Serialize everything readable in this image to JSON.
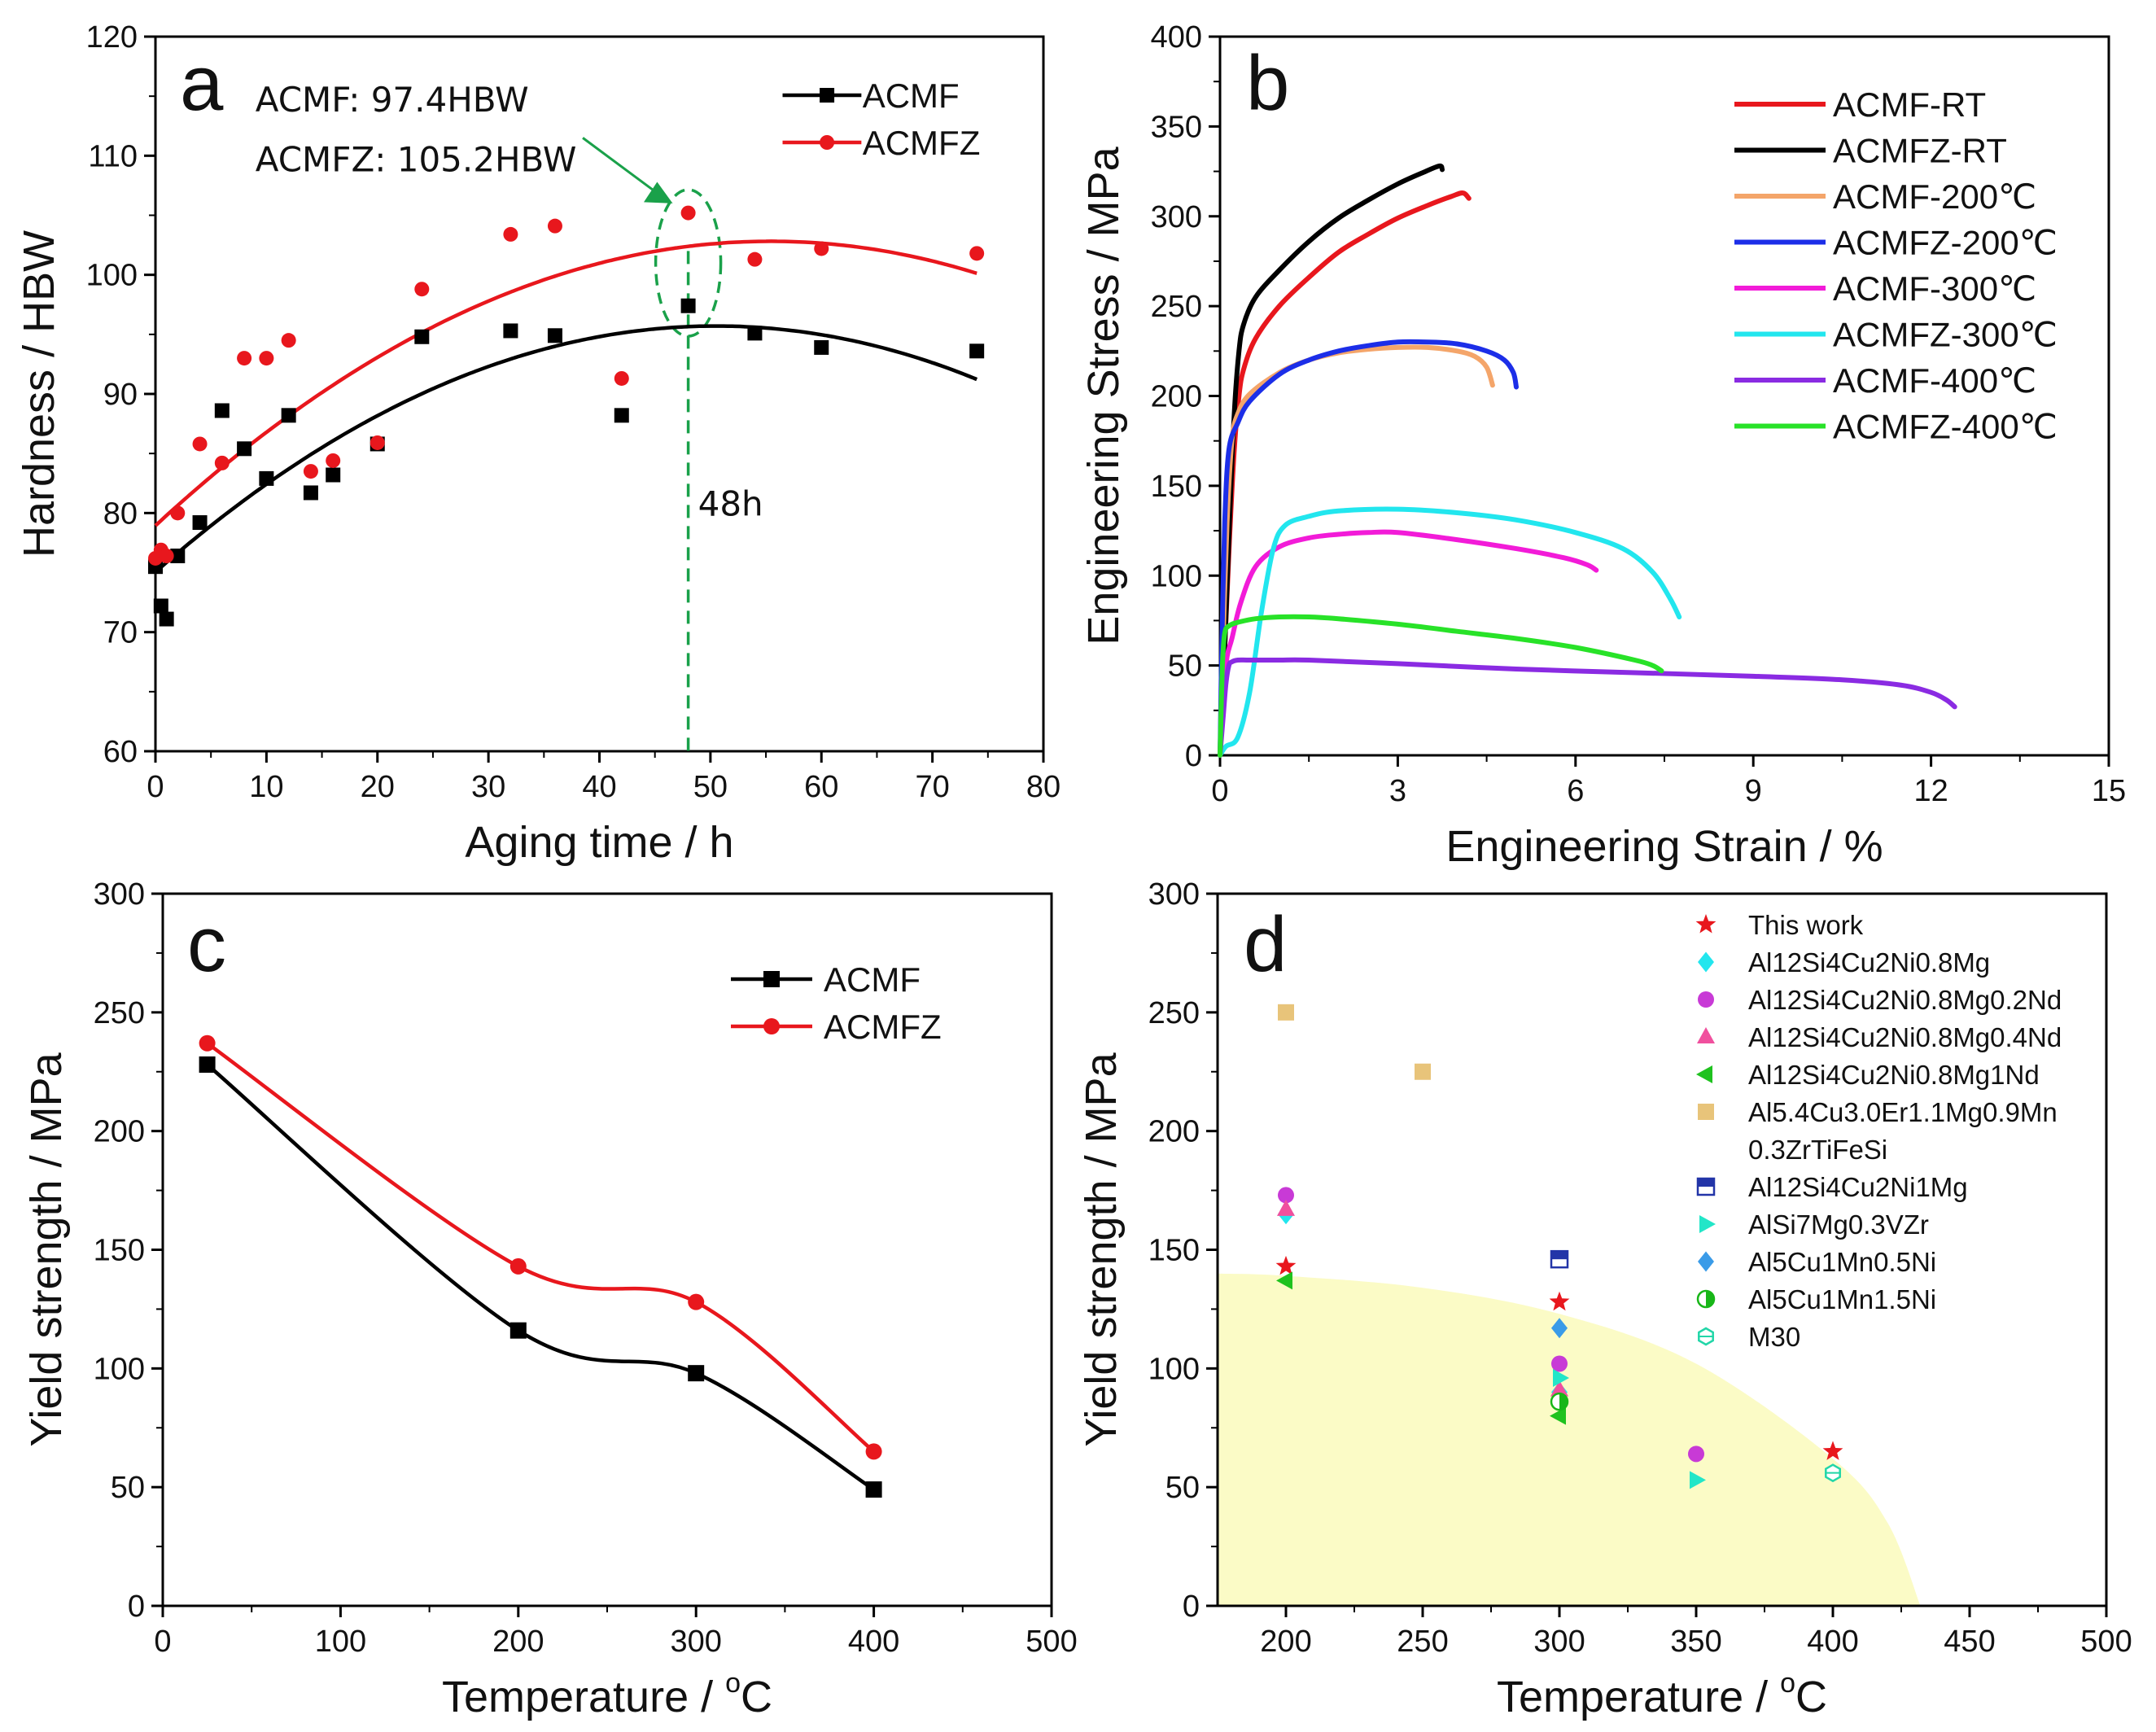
{
  "chart_data": [
    {
      "panel": "a",
      "type": "scatter",
      "xlabel": "Aging time / h",
      "ylabel": "Hardness / HBW",
      "xlim": [
        0,
        80
      ],
      "ylim": [
        60,
        120
      ],
      "xticks": [
        0,
        10,
        20,
        30,
        40,
        50,
        60,
        70,
        80
      ],
      "yticks": [
        60,
        70,
        80,
        90,
        100,
        110,
        120
      ],
      "legend_position": "top-right",
      "annotations": {
        "line1": "ACMF:     97.4HBW",
        "line2": "ACMFZ: 105.2HBW",
        "marker": "48h",
        "marker_x": 48
      },
      "series": [
        {
          "name": "ACMF",
          "color": "#000000",
          "marker": "square",
          "x": [
            0,
            0.5,
            1,
            2,
            4,
            6,
            8,
            10,
            12,
            14,
            16,
            20,
            24,
            32,
            36,
            42,
            48,
            54,
            60,
            74
          ],
          "y": [
            75.5,
            72.2,
            71.1,
            76.4,
            79.2,
            88.6,
            85.4,
            82.9,
            88.2,
            81.7,
            83.2,
            85.8,
            94.8,
            95.3,
            94.9,
            88.2,
            97.4,
            95.1,
            93.9,
            93.6
          ],
          "fit": {
            "a": 75.05,
            "b": 0.818,
            "c": -0.0081
          }
        },
        {
          "name": "ACMFZ",
          "color": "#e8171d",
          "marker": "circle",
          "x": [
            0,
            0.5,
            1,
            2,
            4,
            6,
            8,
            10,
            12,
            14,
            16,
            20,
            24,
            32,
            36,
            42,
            48,
            54,
            60,
            74
          ],
          "y": [
            76.2,
            76.9,
            76.4,
            80.0,
            85.8,
            84.2,
            93.0,
            93.0,
            94.5,
            83.5,
            84.4,
            85.9,
            98.8,
            103.4,
            104.1,
            91.3,
            105.2,
            101.3,
            102.2,
            101.8
          ],
          "fit": {
            "a": 78.94,
            "b": 0.862,
            "c": -0.00778
          }
        }
      ]
    },
    {
      "panel": "b",
      "type": "line",
      "xlabel": "Engineering Strain / %",
      "ylabel": "Engineering Stress / MPa",
      "xlim": [
        0,
        15
      ],
      "ylim": [
        0,
        400
      ],
      "xticks": [
        0,
        3,
        6,
        9,
        12,
        15
      ],
      "yticks": [
        0,
        50,
        100,
        150,
        200,
        250,
        300,
        350,
        400
      ],
      "legend_position": "top-right",
      "series": [
        {
          "name": "ACMF-RT",
          "color": "#e8171d",
          "x": [
            0,
            0.08,
            0.16,
            0.24,
            0.32,
            0.4,
            0.6,
            1,
            1.5,
            2,
            2.5,
            3,
            3.5,
            3.9,
            4.1,
            4.2
          ],
          "y": [
            0,
            60,
            120,
            170,
            200,
            215,
            232,
            250,
            266,
            280,
            290,
            299,
            306,
            311,
            313,
            310
          ]
        },
        {
          "name": "ACMFZ-RT",
          "color": "#000000",
          "x": [
            0,
            0.08,
            0.16,
            0.24,
            0.32,
            0.4,
            0.6,
            1,
            1.5,
            2,
            2.5,
            3,
            3.4,
            3.7,
            3.75
          ],
          "y": [
            0,
            60,
            130,
            190,
            225,
            240,
            255,
            270,
            286,
            299,
            309,
            318,
            324,
            328,
            326
          ]
        },
        {
          "name": "ACMF-200℃",
          "color": "#f4a56a",
          "x": [
            0,
            0.05,
            0.12,
            0.2,
            0.3,
            0.5,
            1,
            1.5,
            2,
            2.5,
            3,
            3.5,
            4,
            4.3,
            4.5,
            4.6
          ],
          "y": [
            0,
            60,
            130,
            175,
            190,
            201,
            213,
            220,
            224,
            226,
            227,
            227,
            225,
            222,
            216,
            206
          ]
        },
        {
          "name": "ACMFZ-200℃",
          "color": "#1c2ee8",
          "x": [
            0,
            0.03,
            0.08,
            0.15,
            0.3,
            0.5,
            1,
            1.5,
            2,
            2.5,
            3,
            3.5,
            4,
            4.5,
            4.8,
            4.95,
            5.0
          ],
          "y": [
            0,
            60,
            130,
            170,
            185,
            197,
            212,
            220,
            225,
            228,
            230,
            230,
            229,
            225,
            220,
            213,
            205
          ]
        },
        {
          "name": "ACMF-300℃",
          "color": "#f21bd8",
          "x": [
            0,
            0.05,
            0.12,
            0.2,
            0.35,
            0.6,
            1,
            1.5,
            2,
            2.5,
            3,
            4,
            5,
            5.8,
            6.2,
            6.35
          ],
          "y": [
            0,
            35,
            55,
            65,
            85,
            105,
            116,
            121,
            123,
            124,
            124,
            120,
            115,
            110,
            106,
            103
          ]
        },
        {
          "name": "ACMFZ-300℃",
          "color": "#22e6ee",
          "x": [
            0,
            0.1,
            0.3,
            0.5,
            0.7,
            0.9,
            1.1,
            1.5,
            2,
            3,
            4,
            5,
            6,
            6.8,
            7.3,
            7.6,
            7.75
          ],
          "y": [
            0,
            5,
            10,
            35,
            80,
            115,
            128,
            133,
            136,
            137,
            135,
            131,
            124,
            115,
            102,
            87,
            77
          ]
        },
        {
          "name": "ACMF-400℃",
          "color": "#8a2be2",
          "x": [
            0,
            0.05,
            0.1,
            0.15,
            0.2,
            0.3,
            0.5,
            1,
            1.5,
            3,
            5,
            7,
            9,
            10.5,
            11.5,
            12,
            12.25,
            12.4
          ],
          "y": [
            0,
            20,
            40,
            50,
            52,
            53,
            53,
            53,
            53,
            51,
            48,
            46,
            44,
            42,
            39,
            35,
            31,
            27
          ]
        },
        {
          "name": "ACMFZ-400℃",
          "color": "#28e228",
          "x": [
            0,
            0.04,
            0.08,
            0.15,
            0.3,
            0.6,
            1,
            1.5,
            2,
            3,
            4,
            5,
            6,
            7,
            7.3,
            7.45
          ],
          "y": [
            0,
            50,
            68,
            72,
            74,
            76,
            77,
            77,
            76,
            73,
            69,
            65,
            60,
            53,
            50,
            47
          ]
        }
      ]
    },
    {
      "panel": "c",
      "type": "line",
      "xlabel": "Temperature / ",
      "xlabel_unit": "C",
      "xlabel_sup": "o",
      "ylabel": "Yield strength / MPa",
      "xlim": [
        0,
        500
      ],
      "ylim": [
        0,
        300
      ],
      "xticks": [
        0,
        100,
        200,
        300,
        400,
        500
      ],
      "yticks": [
        0,
        50,
        100,
        150,
        200,
        250,
        300
      ],
      "legend_position": "top-right",
      "series": [
        {
          "name": "ACMF",
          "color": "#000000",
          "marker": "square",
          "x": [
            25,
            200,
            300,
            400
          ],
          "y": [
            228,
            116,
            98,
            49
          ]
        },
        {
          "name": "ACMFZ",
          "color": "#e8171d",
          "marker": "circle",
          "x": [
            25,
            200,
            300,
            400
          ],
          "y": [
            237,
            143,
            128,
            65
          ]
        }
      ]
    },
    {
      "panel": "d",
      "type": "scatter",
      "xlabel": "Temperature / ",
      "xlabel_unit": "C",
      "xlabel_sup": "o",
      "ylabel": "Yield strength / MPa",
      "xlim": [
        175,
        500
      ],
      "ylim": [
        0,
        300
      ],
      "xticks": [
        200,
        250,
        300,
        350,
        400,
        450,
        500
      ],
      "yticks": [
        0,
        50,
        100,
        150,
        200,
        250,
        300
      ],
      "legend_position": "top-right",
      "shaded_region": {
        "color": "#fbfbc6",
        "boundary_x": [
          175,
          200,
          250,
          300,
          350,
          400,
          420,
          432
        ],
        "boundary_y": [
          140,
          139,
          134,
          123,
          102,
          62,
          35,
          0
        ]
      },
      "series": [
        {
          "name": "This work",
          "color": "#e8171d",
          "marker": "star",
          "x": [
            200,
            300,
            400
          ],
          "y": [
            143,
            128,
            65
          ]
        },
        {
          "name": "Al12Si4Cu2Ni0.8Mg",
          "color": "#22e6ee",
          "marker": "diamond",
          "x": [
            200,
            300
          ],
          "y": [
            165,
            90
          ]
        },
        {
          "name": "Al12Si4Cu2Ni0.8Mg0.2Nd",
          "color": "#c83ad6",
          "marker": "circle",
          "x": [
            200,
            300,
            350
          ],
          "y": [
            173,
            102,
            64
          ]
        },
        {
          "name": "Al12Si4Cu2Ni0.8Mg0.4Nd",
          "color": "#f0509e",
          "marker": "triangle-up",
          "x": [
            200,
            300
          ],
          "y": [
            167,
            91
          ]
        },
        {
          "name": "Al12Si4Cu2Ni0.8Mg1Nd",
          "color": "#1fc21f",
          "marker": "triangle-left",
          "x": [
            200,
            300
          ],
          "y": [
            137,
            80
          ]
        },
        {
          "name": "Al5.4Cu3.0Er1.1Mg0.9Mn",
          "name2": "0.3ZrTiFeSi",
          "color": "#e8c47a",
          "marker": "square",
          "x": [
            200,
            250
          ],
          "y": [
            250,
            225
          ]
        },
        {
          "name": "Al12Si4Cu2Ni1Mg",
          "color": "#2335a8",
          "marker": "half-square",
          "x": [
            300
          ],
          "y": [
            146
          ]
        },
        {
          "name": "AlSi7Mg0.3VZr",
          "color": "#22e6c8",
          "marker": "triangle-right",
          "x": [
            300,
            350
          ],
          "y": [
            96,
            53
          ]
        },
        {
          "name": "Al5Cu1Mn0.5Ni",
          "color": "#3a9be8",
          "marker": "diamond",
          "x": [
            300
          ],
          "y": [
            117
          ]
        },
        {
          "name": "Al5Cu1Mn1.5Ni",
          "color": "#18b618",
          "marker": "half-circle",
          "x": [
            300
          ],
          "y": [
            86
          ]
        },
        {
          "name": "M30",
          "color": "#22d6a8",
          "marker": "hex",
          "x": [
            400
          ],
          "y": [
            56
          ]
        }
      ]
    }
  ]
}
